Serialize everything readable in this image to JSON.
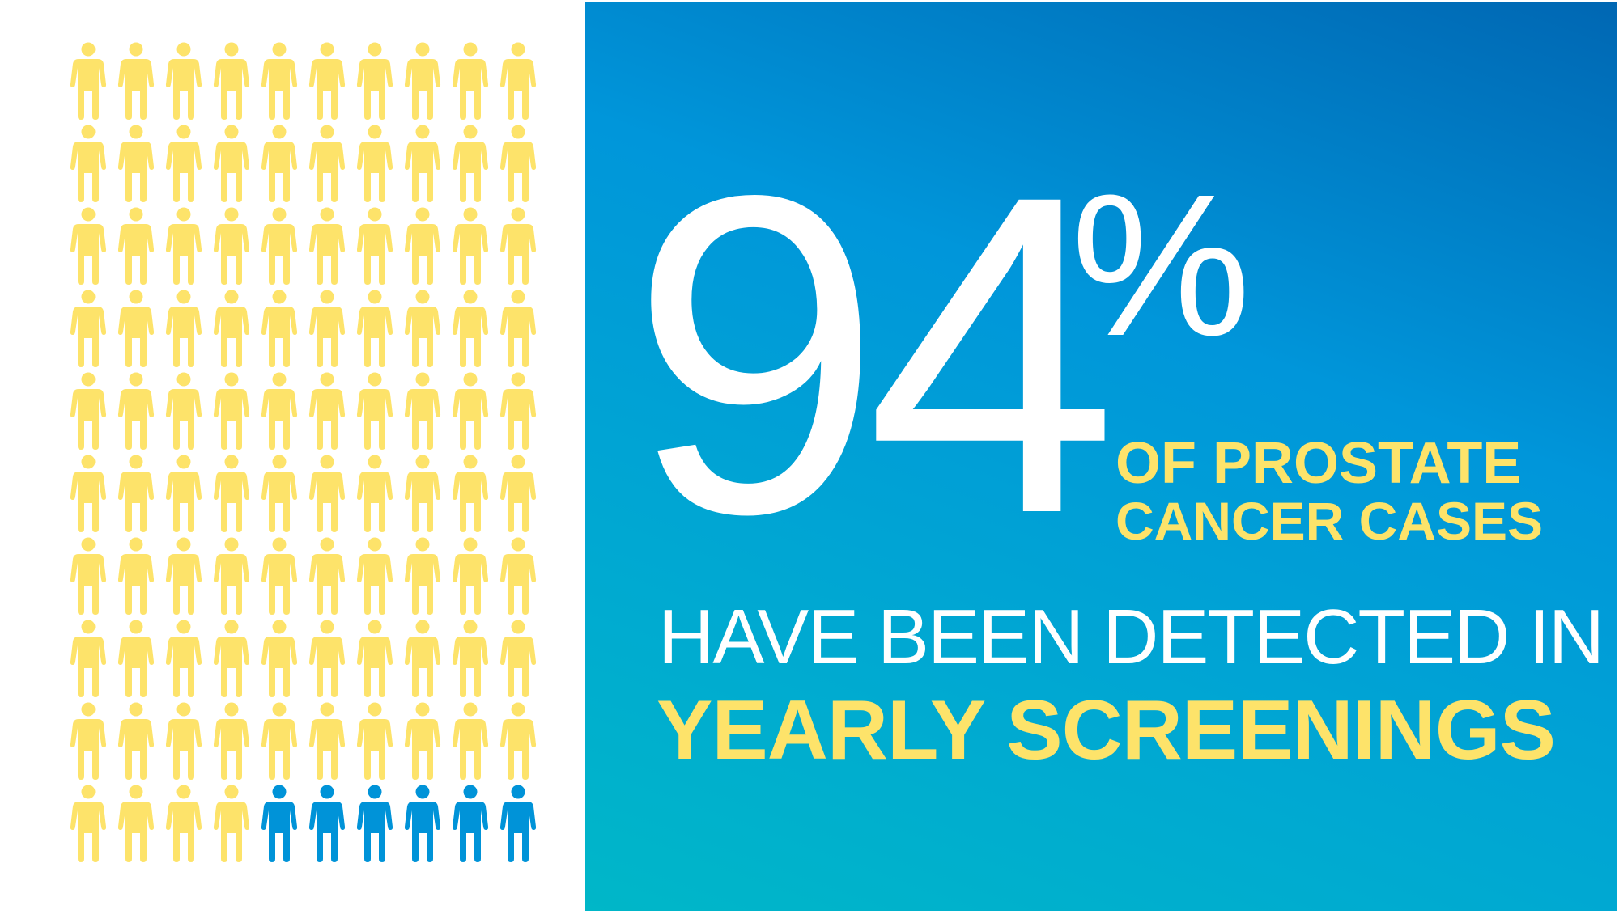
{
  "colors": {
    "yellow_person": "#fde36a",
    "blue_person": "#0093d8",
    "panel_gradient_start": "#00b7c8",
    "panel_gradient_end": "#0067b3",
    "white_text": "#ffffff",
    "yellow_text": "#fde36a"
  },
  "pictogram": {
    "rows": 10,
    "columns": 10,
    "total": 100,
    "yellow_count": 94,
    "blue_count": 6,
    "icon": "person-icon"
  },
  "statistic": {
    "number": "94",
    "percent_sign": "%",
    "line1": "OF PROSTATE",
    "line2": "CANCER CASES",
    "line3": "HAVE BEEN DETECTED IN",
    "line4": "YEARLY SCREENINGS"
  }
}
